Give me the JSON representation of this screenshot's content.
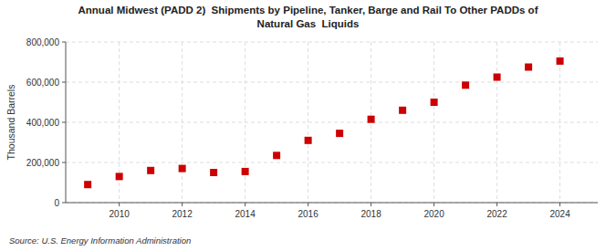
{
  "chart_data": {
    "type": "scatter",
    "title": "Annual Midwest (PADD 2)  Shipments by Pipeline, Tanker, Barge and Rail To Other PADDs of\nNatural Gas  Liquids",
    "ylabel": "Thousand Barrels",
    "source": "Source: U.S. Energy Information Administration",
    "x": [
      2009,
      2010,
      2011,
      2012,
      2013,
      2014,
      2015,
      2016,
      2017,
      2018,
      2019,
      2020,
      2021,
      2022,
      2023,
      2024
    ],
    "values": [
      90000,
      130000,
      160000,
      170000,
      150000,
      155000,
      235000,
      310000,
      345000,
      415000,
      460000,
      500000,
      585000,
      625000,
      675000,
      705000
    ],
    "color": "#CC0000",
    "marker": "square",
    "xlim": [
      2008.3,
      2025.2
    ],
    "xticks": [
      2010,
      2012,
      2014,
      2016,
      2018,
      2020,
      2022,
      2024
    ],
    "ylim": [
      0,
      800000
    ],
    "yticks": [
      0,
      {
        "value": 200000,
        "label": "200,000"
      },
      {
        "value": 400000,
        "label": "400,000"
      },
      {
        "value": 600000,
        "label": "600,000"
      },
      {
        "value": 800000,
        "label": "800,000"
      }
    ],
    "grid": true
  }
}
